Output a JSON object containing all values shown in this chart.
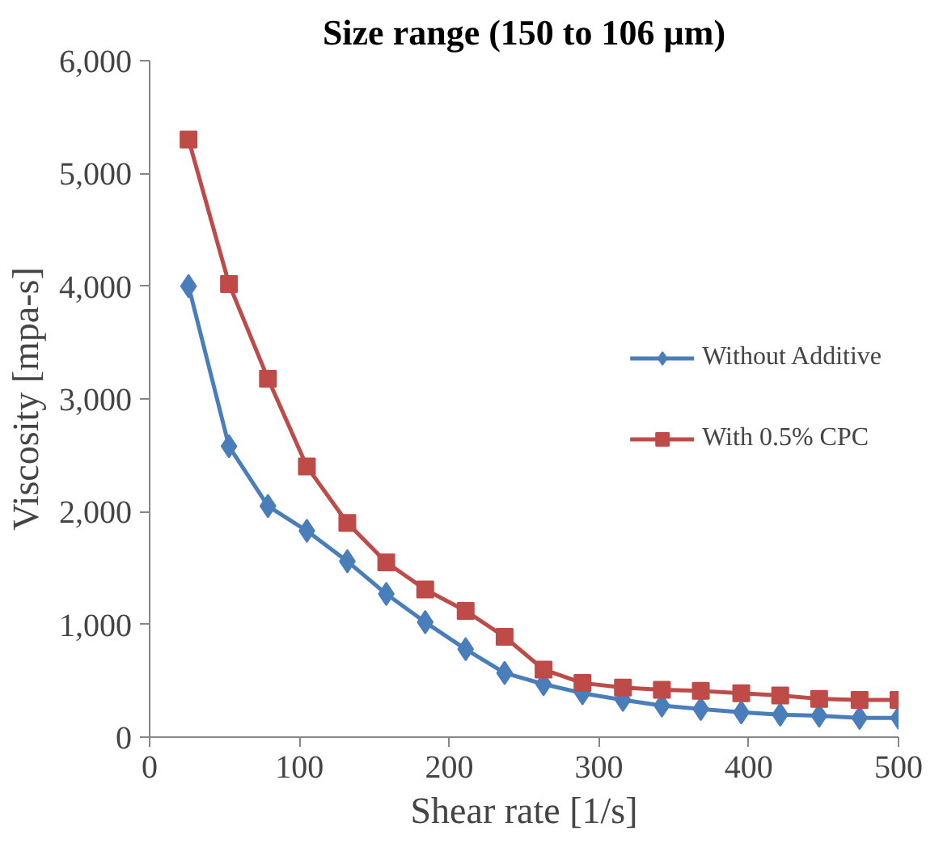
{
  "chart_data": {
    "type": "line",
    "title": "Size range (150 to 106 µm)",
    "xlabel": "Shear rate [1/s]",
    "ylabel": "Viscosity [mpa-s]",
    "x": [
      26,
      53,
      79,
      105,
      132,
      158,
      184,
      211,
      237,
      263,
      289,
      316,
      342,
      368,
      395,
      421,
      447,
      474,
      500
    ],
    "series": [
      {
        "name": "Without Additive",
        "color": "#4a7ebb",
        "marker": "diamond",
        "values": [
          4000,
          2580,
          2050,
          1830,
          1560,
          1270,
          1020,
          780,
          570,
          470,
          390,
          330,
          280,
          250,
          220,
          200,
          190,
          170,
          170
        ]
      },
      {
        "name": "With 0.5% CPC",
        "color": "#be4b48",
        "marker": "square",
        "values": [
          5300,
          4020,
          3180,
          2400,
          1900,
          1550,
          1310,
          1120,
          890,
          600,
          480,
          440,
          420,
          410,
          390,
          370,
          340,
          330,
          330
        ]
      }
    ],
    "xlim": [
      0,
      500
    ],
    "xticks": [
      0,
      100,
      200,
      300,
      400,
      500
    ],
    "ylim": [
      0,
      6000
    ],
    "yticks": [
      {
        "value": 0,
        "label": "0"
      },
      {
        "value": 1000,
        "label": "1,000"
      },
      {
        "value": 2000,
        "label": "2,000"
      },
      {
        "value": 3000,
        "label": "3,000"
      },
      {
        "value": 4000,
        "label": "4,000"
      },
      {
        "value": 5000,
        "label": "5,000"
      },
      {
        "value": 6000,
        "label": "6,000"
      }
    ],
    "grid": false,
    "legend": "right",
    "line_style": "solid"
  }
}
